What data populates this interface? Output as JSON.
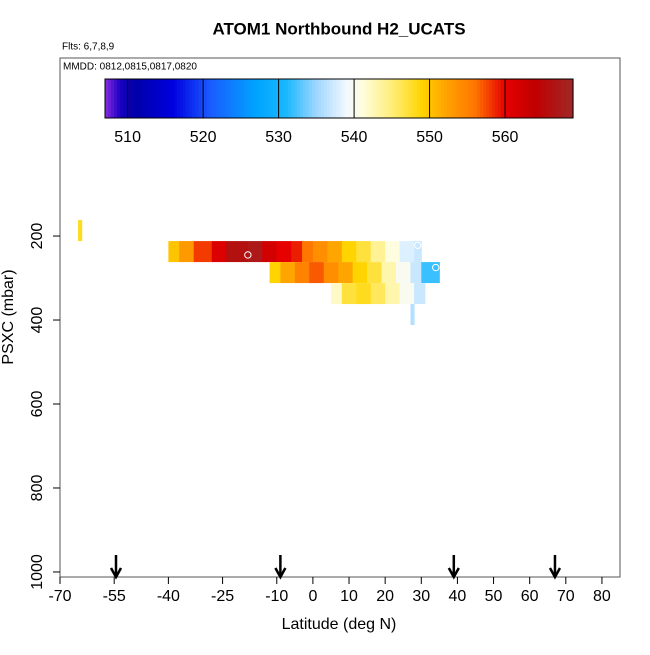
{
  "chart_data": {
    "type": "heatmap",
    "title": "ATOM1 Northbound H2_UCATS",
    "subtitle": "Flts: 6,7,8,9",
    "annotation": "MMDD: 0812,0815,0817,0820",
    "x_label": "Latitude (deg N)",
    "y_label": "PSXC (mbar)",
    "xlim": [
      -70,
      85
    ],
    "xticks": [
      -70,
      -55,
      -40,
      -25,
      -10,
      0,
      10,
      20,
      30,
      40,
      50,
      60,
      70,
      80
    ],
    "ylim": [
      1012,
      -224
    ],
    "yticks": [
      200,
      400,
      600,
      800,
      1000
    ],
    "colorbar_lim": [
      507,
      569
    ],
    "colorbar_ticks": [
      510,
      520,
      530,
      540,
      550,
      560
    ],
    "colorscale": [
      [
        507,
        "#8a2be2"
      ],
      [
        509,
        "#1a00c0"
      ],
      [
        511,
        "#0000a8"
      ],
      [
        516,
        "#0000e0"
      ],
      [
        521,
        "#1a5cff"
      ],
      [
        527,
        "#00a4ff"
      ],
      [
        531,
        "#1ab8ff"
      ],
      [
        535,
        "#9fd6ff"
      ],
      [
        539,
        "#f2f9ff"
      ],
      [
        541,
        "#fffde0"
      ],
      [
        545,
        "#ffee7a"
      ],
      [
        549,
        "#ffd400"
      ],
      [
        552,
        "#ffa500"
      ],
      [
        556,
        "#ff7600"
      ],
      [
        560,
        "#e60000"
      ],
      [
        564,
        "#c00000"
      ],
      [
        569,
        "#a02828"
      ]
    ],
    "cells": [
      {
        "lat": [
          -65,
          -64
        ],
        "p": [
          162,
          212
        ],
        "value": 548
      },
      {
        "lat": [
          -40,
          -37
        ],
        "p": [
          212,
          262
        ],
        "value": 550
      },
      {
        "lat": [
          -37,
          -33
        ],
        "p": [
          212,
          262
        ],
        "value": 553
      },
      {
        "lat": [
          -33,
          -28
        ],
        "p": [
          212,
          262
        ],
        "value": 558
      },
      {
        "lat": [
          -28,
          -24
        ],
        "p": [
          212,
          262
        ],
        "value": 561
      },
      {
        "lat": [
          -24,
          -18
        ],
        "p": [
          212,
          262
        ],
        "value": 566
      },
      {
        "lat": [
          -18,
          -14
        ],
        "p": [
          212,
          262
        ],
        "value": 567
      },
      {
        "lat": [
          -14,
          -10
        ],
        "p": [
          212,
          262
        ],
        "value": 562
      },
      {
        "lat": [
          -10,
          -6
        ],
        "p": [
          212,
          262
        ],
        "value": 560
      },
      {
        "lat": [
          -6,
          -3
        ],
        "p": [
          212,
          262
        ],
        "value": 559
      },
      {
        "lat": [
          -3,
          0
        ],
        "p": [
          212,
          262
        ],
        "value": 556
      },
      {
        "lat": [
          0,
          4
        ],
        "p": [
          212,
          262
        ],
        "value": 554
      },
      {
        "lat": [
          4,
          8
        ],
        "p": [
          212,
          262
        ],
        "value": 552
      },
      {
        "lat": [
          8,
          12
        ],
        "p": [
          212,
          262
        ],
        "value": 549
      },
      {
        "lat": [
          12,
          16
        ],
        "p": [
          212,
          262
        ],
        "value": 547
      },
      {
        "lat": [
          16,
          20
        ],
        "p": [
          212,
          262
        ],
        "value": 544
      },
      {
        "lat": [
          20,
          24
        ],
        "p": [
          212,
          262
        ],
        "value": 541
      },
      {
        "lat": [
          24,
          28
        ],
        "p": [
          212,
          262
        ],
        "value": 538
      },
      {
        "lat": [
          28,
          30
        ],
        "p": [
          212,
          262
        ],
        "value": 537
      },
      {
        "lat": [
          -12,
          -9
        ],
        "p": [
          262,
          312
        ],
        "value": 549
      },
      {
        "lat": [
          -9,
          -5
        ],
        "p": [
          262,
          312
        ],
        "value": 552
      },
      {
        "lat": [
          -5,
          -1
        ],
        "p": [
          262,
          312
        ],
        "value": 555
      },
      {
        "lat": [
          -1,
          3
        ],
        "p": [
          262,
          312
        ],
        "value": 557
      },
      {
        "lat": [
          3,
          7
        ],
        "p": [
          262,
          312
        ],
        "value": 554
      },
      {
        "lat": [
          7,
          11
        ],
        "p": [
          262,
          312
        ],
        "value": 552
      },
      {
        "lat": [
          11,
          15
        ],
        "p": [
          262,
          312
        ],
        "value": 549
      },
      {
        "lat": [
          15,
          19
        ],
        "p": [
          262,
          312
        ],
        "value": 547
      },
      {
        "lat": [
          19,
          23
        ],
        "p": [
          262,
          312
        ],
        "value": 543
      },
      {
        "lat": [
          23,
          27
        ],
        "p": [
          262,
          312
        ],
        "value": 540
      },
      {
        "lat": [
          27,
          30
        ],
        "p": [
          262,
          312
        ],
        "value": 537
      },
      {
        "lat": [
          30,
          35
        ],
        "p": [
          262,
          312
        ],
        "value": 532
      },
      {
        "lat": [
          5,
          8
        ],
        "p": [
          312,
          362
        ],
        "value": 542
      },
      {
        "lat": [
          8,
          12
        ],
        "p": [
          312,
          362
        ],
        "value": 547
      },
      {
        "lat": [
          12,
          16
        ],
        "p": [
          312,
          362
        ],
        "value": 548
      },
      {
        "lat": [
          16,
          20
        ],
        "p": [
          312,
          362
        ],
        "value": 546
      },
      {
        "lat": [
          20,
          24
        ],
        "p": [
          312,
          362
        ],
        "value": 543
      },
      {
        "lat": [
          24,
          28
        ],
        "p": [
          312,
          362
        ],
        "value": 540
      },
      {
        "lat": [
          28,
          31
        ],
        "p": [
          312,
          362
        ],
        "value": 537
      },
      {
        "lat": [
          27,
          28
        ],
        "p": [
          362,
          412
        ],
        "value": 536
      }
    ],
    "markers": [
      {
        "lat": -18,
        "p": 245
      },
      {
        "lat": 29,
        "p": 222
      },
      {
        "lat": 34,
        "p": 275
      }
    ],
    "arrows": [
      -54.5,
      -9,
      39,
      67
    ]
  }
}
